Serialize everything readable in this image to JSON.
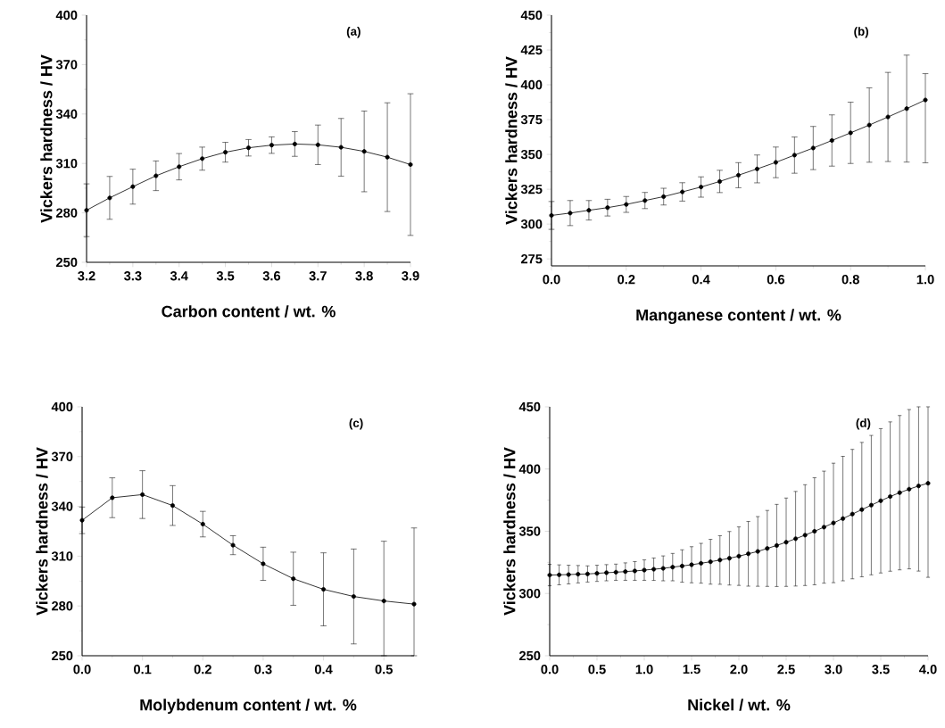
{
  "chart_data": [
    {
      "type": "line",
      "xlabel": "Carbon content / wt. %",
      "ylabel": "Vickers hardness / HV",
      "annotations": [
        "(a)"
      ],
      "x": [
        3.2,
        3.25,
        3.3,
        3.35,
        3.4,
        3.45,
        3.5,
        3.55,
        3.6,
        3.65,
        3.7,
        3.75,
        3.8,
        3.85,
        3.9
      ],
      "values": [
        281.6,
        289.1,
        295.9,
        302.5,
        308,
        312.9,
        316.8,
        319.5,
        321.1,
        321.8,
        321.3,
        319.8,
        317.3,
        313.8,
        309.3
      ],
      "errors": [
        16,
        13,
        10.6,
        9,
        8,
        7,
        6,
        5,
        5,
        7.5,
        12,
        17.5,
        24.5,
        33,
        43
      ],
      "color": "#000000",
      "marker": "circle",
      "line_style": "solid",
      "xlim": [
        3.2,
        3.9
      ],
      "ylim": [
        250,
        400
      ],
      "xticks": [
        3.2,
        3.3,
        3.4,
        3.5,
        3.6,
        3.7,
        3.8,
        3.9
      ],
      "yticks": [
        250,
        280,
        310,
        340,
        370,
        400
      ]
    },
    {
      "type": "line",
      "xlabel": "Manganese content / wt. %",
      "ylabel": "Vickers hardness / HV",
      "annotations": [
        "(b)"
      ],
      "x": [
        0,
        0.05,
        0.1,
        0.15,
        0.2,
        0.25,
        0.3,
        0.35,
        0.4,
        0.45,
        0.5,
        0.55,
        0.6,
        0.65,
        0.7,
        0.75,
        0.8,
        0.85,
        0.9,
        0.95,
        1.0
      ],
      "values": [
        306.2,
        307.9,
        309.9,
        311.8,
        314.1,
        316.9,
        319.7,
        323.1,
        326.6,
        330.6,
        335.1,
        339.6,
        344.3,
        349.5,
        354.6,
        360,
        365.5,
        371.1,
        376.9,
        382.9,
        389.1
      ],
      "errors": [
        10,
        9,
        7,
        6,
        5.7,
        5.8,
        6,
        6.6,
        7.3,
        8,
        9,
        10,
        11,
        13,
        15.5,
        18.4,
        22,
        26.7,
        32,
        38.4,
        [
          344,
          408
        ]
      ],
      "color": "#000000",
      "marker": "circle",
      "line_style": "solid",
      "xlim": [
        0,
        1.0
      ],
      "ylim": [
        270,
        450
      ],
      "xticks": [
        {
          "value": 0,
          "label": "0.0"
        },
        0.2,
        0.4,
        0.6,
        0.8,
        {
          "value": 1,
          "label": "1.0"
        }
      ],
      "yticks": [
        275,
        300,
        325,
        350,
        375,
        400,
        425,
        450
      ]
    },
    {
      "type": "line",
      "xlabel": "Molybdenum content / wt. %",
      "ylabel": "Vickers hardness / HV",
      "annotations": [
        "(c)"
      ],
      "x": [
        0,
        0.05,
        0.1,
        0.15,
        0.2,
        0.25,
        0.3,
        0.35,
        0.4,
        0.45,
        0.5,
        0.55
      ],
      "values": [
        331.6,
        345.2,
        347.1,
        340.5,
        329.3,
        316.6,
        305.4,
        296.4,
        290,
        285.7,
        283,
        281.1
      ],
      "errors": [
        8,
        12,
        14.4,
        12,
        7.7,
        5.7,
        10,
        16,
        22,
        28.6,
        [
          250,
          319
        ],
        [
          250,
          327
        ]
      ],
      "color": "#000000",
      "marker": "circle",
      "line_style": "solid",
      "xlim": [
        0,
        0.55
      ],
      "ylim": [
        250,
        400
      ],
      "xticks": [
        {
          "value": 0,
          "label": "0.0"
        },
        0.1,
        0.2,
        0.3,
        0.4,
        0.5
      ],
      "yticks": [
        250,
        280,
        310,
        340,
        370,
        400
      ]
    },
    {
      "type": "line",
      "xlabel": "Nickel / wt. %",
      "ylabel": "Vickers hardness / HV",
      "annotations": [
        "(d)"
      ],
      "x": [
        0,
        0.1,
        0.2,
        0.3,
        0.4,
        0.5,
        0.6,
        0.7,
        0.8,
        0.9,
        1.0,
        1.1,
        1.2,
        1.3,
        1.4,
        1.5,
        1.6,
        1.7,
        1.8,
        1.9,
        2.0,
        2.1,
        2.2,
        2.3,
        2.4,
        2.5,
        2.6,
        2.7,
        2.8,
        2.9,
        3.0,
        3.1,
        3.2,
        3.3,
        3.4,
        3.5,
        3.6,
        3.7,
        3.8,
        3.9,
        4.0
      ],
      "values": [
        314.8,
        315,
        315.2,
        315.5,
        315.7,
        316.2,
        316.7,
        317.1,
        317.6,
        318.1,
        318.8,
        319.5,
        320.2,
        321.2,
        322.1,
        323.1,
        324.3,
        325.5,
        326.9,
        328.3,
        330,
        331.9,
        333.8,
        336.2,
        338.6,
        341.2,
        344,
        346.9,
        350,
        353.3,
        356.7,
        360.2,
        363.8,
        367.4,
        371,
        374.5,
        377.9,
        381,
        383.8,
        386.4,
        388.6
      ],
      "errors": [
        8.6,
        8,
        7.5,
        7,
        6.5,
        6.5,
        6.5,
        6.5,
        7,
        7.5,
        8.2,
        9,
        10,
        11,
        13,
        14.5,
        16,
        18,
        19.5,
        21.5,
        23.5,
        26,
        28,
        30.5,
        33,
        35.5,
        38,
        40.5,
        43,
        45,
        48,
        50,
        52,
        54,
        56,
        58,
        60,
        62,
        64,
        [
          318,
          450
        ],
        [
          313,
          450
        ]
      ],
      "color": "#000000",
      "marker": "circle",
      "line_style": "solid",
      "xlim": [
        0,
        4.0
      ],
      "ylim": [
        250,
        450
      ],
      "xticks": [
        {
          "value": 0,
          "label": "0.0"
        },
        0.5,
        {
          "value": 1,
          "label": "1.0"
        },
        1.5,
        {
          "value": 2,
          "label": "2.0"
        },
        2.5,
        {
          "value": 3,
          "label": "3.0"
        },
        3.5,
        {
          "value": 4,
          "label": "4.0"
        }
      ],
      "yticks": [
        250,
        300,
        350,
        400,
        450
      ]
    }
  ]
}
